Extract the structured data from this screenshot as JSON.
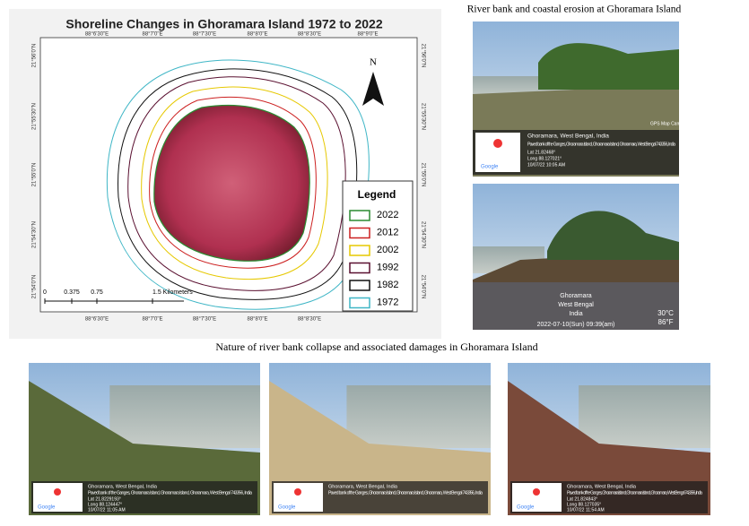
{
  "map": {
    "title": "Shoreline Changes in Ghoramara Island 1972  to 2022",
    "north": "N",
    "lon_top": [
      "88°6'30\"E",
      "88°7'0\"E",
      "88°7'30\"E",
      "88°8'0\"E",
      "88°8'30\"E",
      "88°9'0\"E"
    ],
    "lon_bottom": [
      "88°6'30\"E",
      "88°7'0\"E",
      "88°7'30\"E",
      "88°8'0\"E",
      "88°8'30\"E"
    ],
    "lat_left": [
      "21°56'0\"N",
      "21°55'30\"N",
      "21°55'0\"N",
      "21°54'30\"N",
      "21°54'0\"N"
    ],
    "lat_right": [
      "21°56'0\"N",
      "21°55'30\"N",
      "21°55'0\"N",
      "21°54'30\"N",
      "21°54'0\"N"
    ],
    "legend": {
      "title": "Legend",
      "items": [
        "2022",
        "2012",
        "2002",
        "1992",
        "1982",
        "1972"
      ]
    },
    "scale": [
      "0",
      "0.375",
      "0.75",
      "1.5 Kilometers"
    ]
  },
  "captions": {
    "top": "River bank and coastal erosion at Ghoramara Island",
    "middle": "Nature of river bank collapse and associated damages in Ghoramara Island"
  },
  "photos": [
    {
      "place": "Ghoramara, West Bengal, India",
      "address": "Paved bank of the Ganges, Ghoramara Island, Ghoramara Island, Ghoramara, West Bengal 743356, India",
      "lat": "Lat 21.82468°",
      "long": "Long 88.127021°",
      "time": "10/07/22 10:05 AM",
      "logo": "Google",
      "app": "GPS Map Camera"
    },
    {
      "lines": [
        "Ghoramara",
        "West Bengal",
        "India"
      ],
      "time": "2022-07-10(Sun)  09:39(am)",
      "temp_c": "30°C",
      "temp_f": "86°F"
    },
    {
      "place": "Ghoramara, West Bengal, India",
      "address": "Paved bank of the Ganges, Ghoramara Island, Ghoramara Island, Ghoramara, West Bengal 743356, India",
      "lat": "Lat 21.8229193°",
      "long": "Long 88.124447°",
      "time": "10/07/22 11:05 AM",
      "logo": "Google"
    },
    {
      "place": "Ghoramara, West Bengal, India",
      "address": "Paved bank of the Ganges, Ghoramara Island, Ghoramara Island, Ghoramara, West Bengal 743356, India",
      "logo": "Google"
    },
    {
      "place": "Ghoramara, West Bengal, India",
      "address": "Paved bank of the Ganges, Ghoramara Island, Ghoramara Island, Ghoramara, West Bengal 743356, India",
      "lat": "Lat 21.824843°",
      "long": "Long 88.127035°",
      "time": "10/07/22 11:54 AM",
      "logo": "Google"
    }
  ]
}
